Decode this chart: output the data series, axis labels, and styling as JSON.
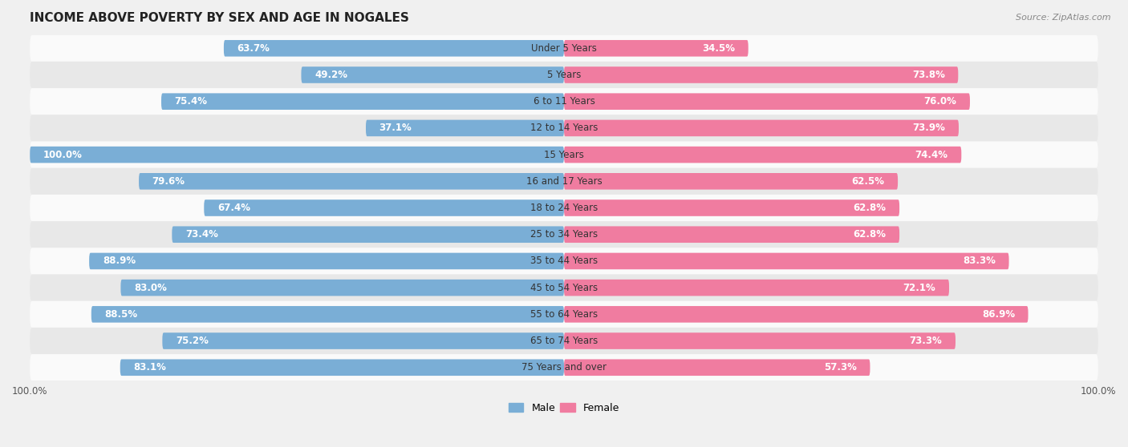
{
  "title": "INCOME ABOVE POVERTY BY SEX AND AGE IN NOGALES",
  "source": "Source: ZipAtlas.com",
  "categories": [
    "Under 5 Years",
    "5 Years",
    "6 to 11 Years",
    "12 to 14 Years",
    "15 Years",
    "16 and 17 Years",
    "18 to 24 Years",
    "25 to 34 Years",
    "35 to 44 Years",
    "45 to 54 Years",
    "55 to 64 Years",
    "65 to 74 Years",
    "75 Years and over"
  ],
  "male": [
    63.7,
    49.2,
    75.4,
    37.1,
    100.0,
    79.6,
    67.4,
    73.4,
    88.9,
    83.0,
    88.5,
    75.2,
    83.1
  ],
  "female": [
    34.5,
    73.8,
    76.0,
    73.9,
    74.4,
    62.5,
    62.8,
    62.8,
    83.3,
    72.1,
    86.9,
    73.3,
    57.3
  ],
  "male_color": "#7aaed6",
  "female_color": "#f07ca0",
  "male_label": "Male",
  "female_label": "Female",
  "bg_color": "#f0f0f0",
  "row_color_light": "#fafafa",
  "row_color_dark": "#e8e8e8",
  "axis_label_left": "100.0%",
  "axis_label_right": "100.0%",
  "title_fontsize": 11,
  "label_fontsize": 8.5,
  "bar_label_fontsize": 8.5,
  "category_fontsize": 8.5
}
